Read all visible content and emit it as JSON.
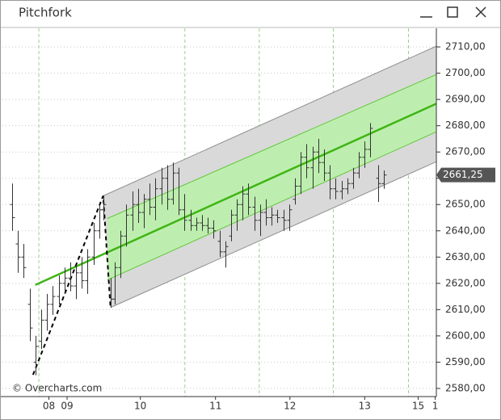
{
  "window_title": "Pitchfork",
  "chart_data": {
    "type": "ohlc",
    "watermark": "© Overcharts.com",
    "xlim": [
      0,
      112
    ],
    "ylim": [
      2576.9,
      2717.1
    ],
    "xticks": [
      {
        "value": 12,
        "label": "08"
      },
      {
        "value": 16.7,
        "label": "09"
      },
      {
        "value": 35.6,
        "label": "10"
      },
      {
        "value": 55,
        "label": "11"
      },
      {
        "value": 74.2,
        "label": "12"
      },
      {
        "value": 93.5,
        "label": "13"
      },
      {
        "value": 107.3,
        "label": "15"
      },
      {
        "value": 111.7,
        "label": "1"
      }
    ],
    "x_grid_lines": [
      9.4,
      47.1,
      66.3,
      85.4,
      104.8
    ],
    "yticks": [
      {
        "value": 2580,
        "label": "2580,00"
      },
      {
        "value": 2590,
        "label": "2590,00"
      },
      {
        "value": 2600,
        "label": "2600,00"
      },
      {
        "value": 2610,
        "label": "2610,00"
      },
      {
        "value": 2620,
        "label": "2620,00"
      },
      {
        "value": 2630,
        "label": "2630,00"
      },
      {
        "value": 2640,
        "label": "2640,00"
      },
      {
        "value": 2650,
        "label": "2650,00"
      },
      {
        "value": 2660,
        "label": "2660,00"
      },
      {
        "value": 2670,
        "label": "2670,00"
      },
      {
        "value": 2680,
        "label": "2680,00"
      },
      {
        "value": 2690,
        "label": "2690,00"
      },
      {
        "value": 2700,
        "label": "2700,00"
      },
      {
        "value": 2710,
        "label": "2710,00"
      }
    ],
    "grid": true,
    "color": "#333333",
    "last_price": {
      "value": 2661.25,
      "label": "2661,25"
    },
    "x": [
      2.5,
      4.0,
      5.5,
      7.0,
      8.5,
      10.0,
      11.5,
      13.0,
      14.5,
      16.0,
      17.5,
      19.0,
      20.5,
      22.0,
      23.5,
      25.0,
      26.0,
      27.9,
      29.0,
      30.5,
      32.0,
      33.5,
      35.0,
      36.5,
      38.0,
      39.5,
      41.0,
      42.5,
      44.0,
      45.5,
      47.0,
      48.5,
      50.0,
      51.5,
      53.0,
      54.5,
      56.0,
      57.5,
      59.0,
      60.5,
      62.0,
      63.5,
      65.0,
      66.5,
      68.0,
      69.5,
      71.0,
      72.5,
      74.0,
      75.5,
      77.0,
      78.5,
      80.0,
      81.5,
      83.0,
      84.5,
      86.0,
      87.5,
      89.0,
      90.5,
      92.0,
      93.5,
      95.0,
      97.0,
      98.5
    ],
    "open": [
      2650,
      2635,
      2630,
      2612,
      2590,
      2598,
      2606,
      2612,
      2615,
      2620,
      2622,
      2619,
      2624,
      2621,
      2630,
      2640,
      2648,
      2615,
      2614,
      2626,
      2638,
      2646,
      2650,
      2647,
      2652,
      2649,
      2656,
      2660,
      2652,
      2662,
      2648,
      2644,
      2642,
      2643,
      2642,
      2641,
      2636,
      2632,
      2638,
      2646,
      2650,
      2654,
      2649,
      2644,
      2647,
      2645,
      2646,
      2645,
      2644,
      2652,
      2657,
      2668,
      2664,
      2670,
      2666,
      2662,
      2656,
      2655,
      2656,
      2658,
      2662,
      2668,
      2671,
      2660,
      2658
    ],
    "high": [
      2658,
      2640,
      2635,
      2618,
      2600,
      2610,
      2616,
      2619,
      2623,
      2626,
      2628,
      2627,
      2630,
      2633,
      2643,
      2650,
      2653.3,
      2622,
      2628,
      2640,
      2650,
      2655,
      2656,
      2654,
      2658,
      2660,
      2664,
      2665,
      2666,
      2664,
      2654,
      2648,
      2645,
      2646,
      2645,
      2644,
      2640,
      2636,
      2648,
      2652,
      2657,
      2658,
      2653,
      2650,
      2652,
      2649,
      2648,
      2648,
      2650,
      2660,
      2670,
      2673,
      2672,
      2675,
      2671,
      2665,
      2660,
      2659,
      2660,
      2664,
      2670,
      2674,
      2681,
      2665,
      2663
    ],
    "low": [
      2640,
      2624,
      2622,
      2598,
      2585,
      2595,
      2602,
      2608,
      2612,
      2616,
      2617,
      2614,
      2618,
      2616,
      2627,
      2637,
      2644,
      2610.8,
      2612,
      2622,
      2634,
      2640,
      2643,
      2641,
      2646,
      2644,
      2650,
      2648,
      2650,
      2646,
      2640,
      2640,
      2640,
      2640,
      2639,
      2637,
      2630,
      2626,
      2636,
      2640,
      2644,
      2646,
      2640,
      2638,
      2642,
      2642,
      2643,
      2640,
      2640,
      2650,
      2654,
      2660,
      2656,
      2662,
      2659,
      2652,
      2652,
      2652,
      2654,
      2656,
      2660,
      2664,
      2668,
      2651,
      2656
    ],
    "close": [
      2645,
      2630,
      2626,
      2603,
      2596,
      2606,
      2612,
      2615,
      2620,
      2622,
      2619,
      2624,
      2621,
      2630,
      2640,
      2648,
      2650,
      2614,
      2626,
      2638,
      2646,
      2650,
      2647,
      2652,
      2649,
      2656,
      2660,
      2652,
      2662,
      2648,
      2644,
      2642,
      2643,
      2642,
      2641,
      2640,
      2632,
      2634,
      2646,
      2650,
      2654,
      2649,
      2644,
      2647,
      2645,
      2646,
      2645,
      2644,
      2648,
      2657,
      2668,
      2664,
      2670,
      2666,
      2662,
      2656,
      2655,
      2656,
      2658,
      2662,
      2668,
      2671,
      2679,
      2658,
      2661.25
    ],
    "pitchfork": {
      "pivots": {
        "x": [
          7.9,
          26,
          27.9
        ],
        "y": [
          2585.2,
          2653.3,
          2610.8
        ]
      },
      "median": {
        "x": [
          8.5,
          112
        ],
        "y": [
          2619.4,
          2688.4
        ],
        "color": "#3fb514"
      },
      "outer": [
        {
          "x": [
            26,
            112
          ],
          "y": [
            2653.3,
            2710.3
          ]
        },
        {
          "x": [
            27.9,
            112
          ],
          "y": [
            2610.8,
            2666.3
          ]
        }
      ],
      "inner": [
        {
          "x": [
            27.1,
            112
          ],
          "y": [
            2644.7,
            2699.5
          ]
        },
        {
          "x": [
            27.1,
            112
          ],
          "y": [
            2621.3,
            2677.7
          ]
        }
      ],
      "outer_color": "#8f8f8f",
      "outer_fill": "#d9d9d9",
      "inner_color": "#62c83c",
      "inner_fill": "#bdeeaf"
    }
  }
}
